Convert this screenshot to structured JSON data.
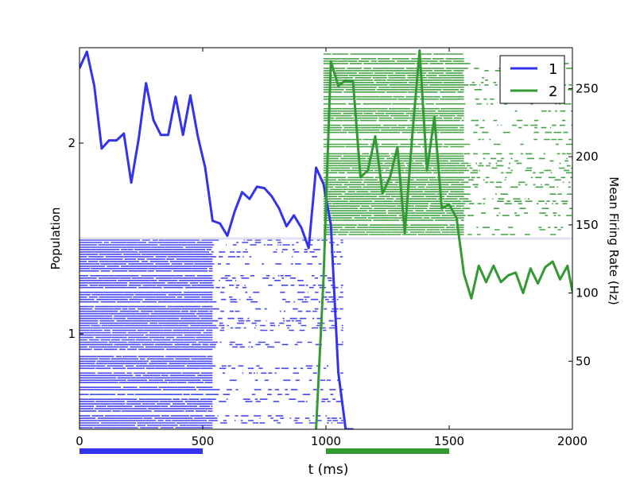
{
  "chart_data": {
    "type": "line",
    "title": "",
    "xlabel": "t (ms)",
    "ylabel_left": "Population",
    "ylabel_right": "Mean Firing Rate (Hz)",
    "xlim": [
      0,
      2000
    ],
    "ylim_left": [
      0.5,
      2.5
    ],
    "ylim_right": [
      0,
      280
    ],
    "x_ticks": [
      "0",
      "500",
      "1000",
      "1500",
      "2000"
    ],
    "y_ticks_left": [
      "1",
      "2"
    ],
    "y_ticks_right": [
      "50",
      "100",
      "150",
      "200",
      "250"
    ],
    "legend": {
      "placement": "top-right",
      "entries": [
        "1",
        "2"
      ]
    },
    "grid": false,
    "colors": {
      "pop1": "#3333ee",
      "pop2": "#339933",
      "separator": "#e0e0f0"
    },
    "raster": [
      {
        "population": "1",
        "color": "#3333ee",
        "y_range": [
          0.5,
          1.5
        ],
        "dense_until": 540,
        "sparse_until": 1070
      },
      {
        "population": "2",
        "color": "#339933",
        "y_range": [
          1.5,
          2.5
        ],
        "start": 990,
        "dense_until": 1560,
        "sparse_until": 2000
      }
    ],
    "stimulus_bars": [
      {
        "population": "1",
        "start": 0,
        "end": 500,
        "color": "#3333ee"
      },
      {
        "population": "2",
        "start": 1000,
        "end": 1500,
        "color": "#339933"
      }
    ],
    "series": [
      {
        "name": "1",
        "color": "#3333ee",
        "x": [
          0,
          30,
          60,
          90,
          120,
          150,
          180,
          210,
          240,
          270,
          300,
          330,
          360,
          390,
          420,
          450,
          480,
          510,
          540,
          570,
          600,
          630,
          660,
          690,
          720,
          750,
          780,
          810,
          840,
          870,
          900,
          930,
          960,
          990,
          1020,
          1050,
          1080,
          1110
        ],
        "y": [
          265,
          277,
          252,
          206,
          212,
          212,
          217,
          181,
          213,
          254,
          227,
          216,
          216,
          244,
          216,
          245,
          215,
          192,
          153,
          151,
          142,
          160,
          174,
          169,
          178,
          177,
          171,
          162,
          149,
          157,
          148,
          133,
          192,
          180,
          150,
          42,
          0,
          0
        ]
      },
      {
        "name": "2",
        "color": "#339933",
        "x": [
          960,
          990,
          1020,
          1050,
          1080,
          1110,
          1140,
          1170,
          1200,
          1230,
          1260,
          1290,
          1320,
          1350,
          1380,
          1410,
          1440,
          1470,
          1500,
          1530,
          1560,
          1590,
          1620,
          1650,
          1680,
          1710,
          1740,
          1770,
          1800,
          1830,
          1860,
          1890,
          1920,
          1950,
          1980,
          2000
        ],
        "y": [
          0,
          110,
          270,
          252,
          256,
          255,
          185,
          190,
          215,
          173,
          185,
          207,
          144,
          215,
          278,
          190,
          229,
          162,
          165,
          155,
          114,
          96,
          120,
          108,
          120,
          108,
          113,
          115,
          100,
          118,
          107,
          119,
          123,
          110,
          120,
          101
        ]
      }
    ]
  }
}
